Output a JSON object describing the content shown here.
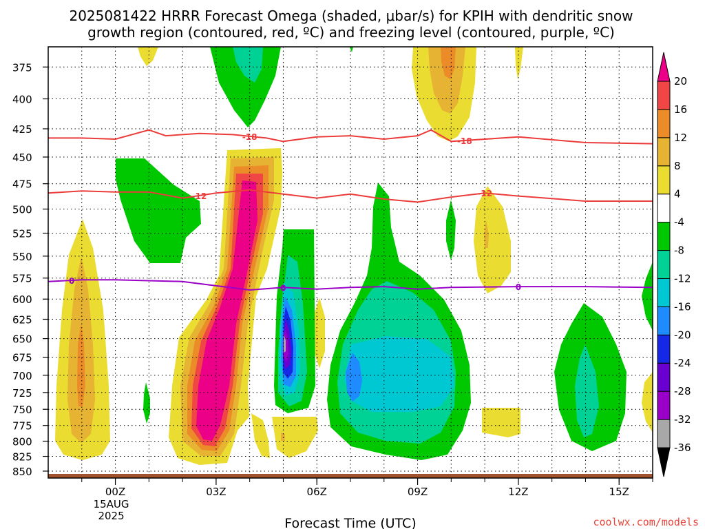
{
  "title_line1": "2025081422 HRRR Forecast Omega (shaded, μbar/s) for KPIH with dendritic snow",
  "title_line2": "growth region (contoured, red, ºC) and freezing level (contoured, purple, ºC)",
  "credit": "coolwx.com/models",
  "chart_data": {
    "type": "contour",
    "title": "2025081422 HRRR Forecast Omega (shaded, μbar/s) for KPIH with dendritic snow growth region (contoured, red, ºC) and freezing level (contoured, purple, ºC)",
    "xlabel": "Forecast Time (UTC)",
    "x_ticks": [
      {
        "hours": 0,
        "label": "00Z",
        "sub": [
          "15AUG",
          "2025"
        ]
      },
      {
        "hours": 3,
        "label": "03Z",
        "sub": []
      },
      {
        "hours": 6,
        "label": "06Z",
        "sub": []
      },
      {
        "hours": 9,
        "label": "09Z",
        "sub": []
      },
      {
        "hours": 12,
        "label": "12Z",
        "sub": []
      },
      {
        "hours": 15,
        "label": "15Z",
        "sub": []
      }
    ],
    "xlim_hours": [
      -2,
      16
    ],
    "y_ticks_hPa": [
      375,
      400,
      425,
      450,
      475,
      500,
      525,
      550,
      575,
      600,
      625,
      650,
      675,
      700,
      725,
      750,
      775,
      800,
      825,
      850
    ],
    "ylim_hPa": [
      360,
      862
    ],
    "y_scale": "log-pressure",
    "grid": true,
    "colorbar": {
      "levels": [
        -36,
        -32,
        -28,
        -24,
        -20,
        -16,
        -12,
        -8,
        -4,
        4,
        8,
        12,
        16,
        20
      ],
      "colors": [
        "#a8a8a8",
        "#9a00c8",
        "#6a00d0",
        "#1428e6",
        "#1e8cff",
        "#00c8d2",
        "#00d296",
        "#00c800",
        "#ffffff",
        "#ebdc32",
        "#e6b432",
        "#eb8c28",
        "#f04646",
        "#eb0087"
      ],
      "below_color": "#000000",
      "above_color": "#eb0087"
    },
    "contours": [
      {
        "name": "-18",
        "color": "#ec3b3b",
        "label": "-18",
        "points": [
          [
            -2,
            433
          ],
          [
            -1,
            433
          ],
          [
            0,
            434
          ],
          [
            1,
            426
          ],
          [
            1.5,
            431
          ],
          [
            2.5,
            429
          ],
          [
            3.5,
            430
          ],
          [
            4.5,
            433
          ],
          [
            5,
            436
          ],
          [
            6,
            432
          ],
          [
            7,
            431
          ],
          [
            8,
            434
          ],
          [
            9,
            431
          ],
          [
            9.4,
            426
          ],
          [
            10,
            436
          ],
          [
            12,
            432
          ],
          [
            14,
            437
          ],
          [
            16,
            438
          ]
        ]
      },
      {
        "name": "-12",
        "color": "#ec3b3b",
        "label": "-12",
        "points": [
          [
            -2,
            484
          ],
          [
            -1,
            482
          ],
          [
            0,
            483
          ],
          [
            1,
            483
          ],
          [
            2,
            489
          ],
          [
            3,
            484
          ],
          [
            4,
            481
          ],
          [
            5,
            485
          ],
          [
            6,
            489
          ],
          [
            7,
            485
          ],
          [
            8,
            490
          ],
          [
            9,
            493
          ],
          [
            10,
            488
          ],
          [
            11,
            484
          ],
          [
            12,
            487
          ],
          [
            14,
            492
          ],
          [
            16,
            492
          ]
        ]
      },
      {
        "name": "0",
        "color": "#9a00c8",
        "label": "0",
        "points": [
          [
            -2,
            579
          ],
          [
            -1,
            577
          ],
          [
            0,
            577
          ],
          [
            1,
            578
          ],
          [
            2,
            579
          ],
          [
            3,
            584
          ],
          [
            4,
            589
          ],
          [
            5,
            586
          ],
          [
            6,
            588
          ],
          [
            7,
            586
          ],
          [
            8,
            585
          ],
          [
            9,
            588
          ],
          [
            10,
            586
          ],
          [
            12,
            585
          ],
          [
            14,
            585
          ],
          [
            16,
            586
          ]
        ]
      }
    ],
    "surface_color": "#a0522d"
  }
}
